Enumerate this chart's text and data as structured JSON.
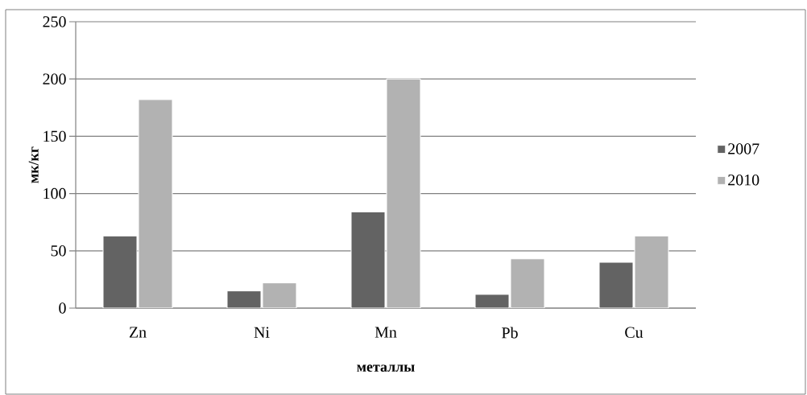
{
  "chart_data": {
    "type": "bar",
    "xlabel": "металлы",
    "ylabel": "мк/кг",
    "categories": [
      "Zn",
      "Ni",
      "Mn",
      "Pb",
      "Cu"
    ],
    "series": [
      {
        "name": "2007",
        "color": "#636363",
        "values": [
          63,
          15,
          84,
          12,
          40
        ]
      },
      {
        "name": "2010",
        "color": "#b2b2b2",
        "values": [
          182,
          22,
          200,
          43,
          63
        ]
      }
    ],
    "ylim": [
      0,
      250
    ],
    "yticks": [
      0,
      50,
      100,
      150,
      200,
      250
    ],
    "grid": "y",
    "legend": "right"
  }
}
